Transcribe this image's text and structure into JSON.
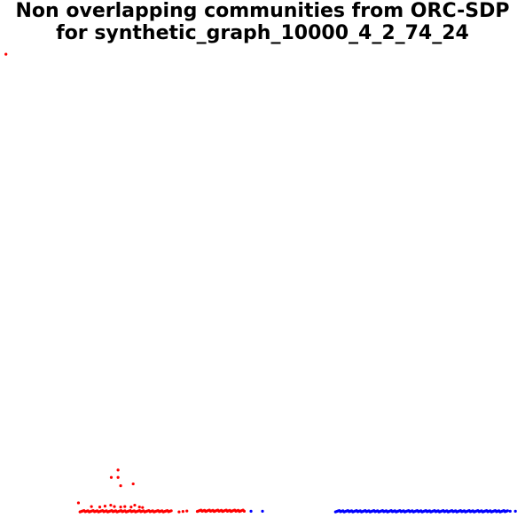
{
  "title": {
    "line1": "Non overlapping communities from ORC-SDP",
    "line2": "for synthetic_graph_10000_4_2_74_24"
  },
  "chart_data": {
    "type": "scatter",
    "title": "Non overlapping communities from ORC-SDP for synthetic_graph_10000_4_2_74_24",
    "xlabel": "",
    "ylabel": "",
    "axes_visible": false,
    "grid": false,
    "legend": "none",
    "xlim": [
      0,
      100
    ],
    "ylim": [
      0,
      100
    ],
    "series": [
      {
        "color": "#ff0000",
        "points": [
          [
            0.8,
            99.4
          ],
          [
            22.3,
            9.6
          ],
          [
            21.0,
            8.0
          ],
          [
            22.3,
            8.0
          ],
          [
            22.8,
            6.2
          ],
          [
            25.2,
            6.6
          ],
          [
            14.7,
            2.5
          ],
          [
            17.2,
            1.7
          ],
          [
            18.8,
            1.6
          ],
          [
            19.8,
            1.8
          ],
          [
            20.9,
            2.0
          ],
          [
            21.6,
            1.7
          ],
          [
            22.8,
            1.6
          ],
          [
            23.6,
            1.7
          ],
          [
            24.8,
            1.6
          ],
          [
            25.5,
            2.0
          ],
          [
            26.4,
            1.6
          ],
          [
            27.0,
            1.5
          ]
        ],
        "bands": [
          {
            "x_start": 15.0,
            "x_end": 32.5,
            "y": 0.7,
            "count": 70
          },
          {
            "x_start": 34.0,
            "x_end": 35.5,
            "y": 0.7,
            "count": 3
          },
          {
            "x_start": 37.5,
            "x_end": 46.5,
            "y": 0.8,
            "count": 40
          }
        ]
      },
      {
        "color": "#0000ff",
        "points": [
          [
            47.8,
            0.7
          ],
          [
            50.0,
            0.7
          ],
          [
            97.5,
            0.7
          ],
          [
            98.5,
            0.7
          ]
        ],
        "bands": [
          {
            "x_start": 64.0,
            "x_end": 97.0,
            "y": 0.7,
            "count": 140
          }
        ]
      }
    ]
  }
}
